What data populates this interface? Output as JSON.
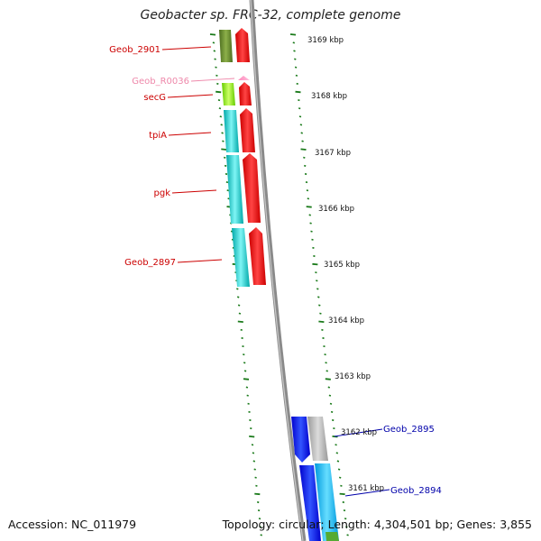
{
  "title": "Geobacter sp. FRC-32, complete genome",
  "accession": "Accession: NC_011979",
  "summary": "Topology: circular; Length: 4,304,501 bp; Genes: 3,855",
  "kbp_labels": [
    "3169 kbp",
    "3168 kbp",
    "3167 kbp",
    "3166 kbp",
    "3165 kbp",
    "3164 kbp",
    "3163 kbp",
    "3162 kbp",
    "3161 kbp"
  ],
  "gene_labels": {
    "geob_2901": "Geob_2901",
    "geob_r0036": "Geob_R0036",
    "secg": "secG",
    "tpia": "tpiA",
    "pgk": "pgk",
    "geob_2897": "Geob_2897",
    "geob_2895": "Geob_2895",
    "geob_2894": "Geob_2894"
  },
  "colors": {
    "reverse_label": "#cc0000",
    "rna_label": "#ee88aa",
    "forward_label": "#0000aa",
    "tick": "#1a7a1a",
    "backbone": "#888888"
  }
}
